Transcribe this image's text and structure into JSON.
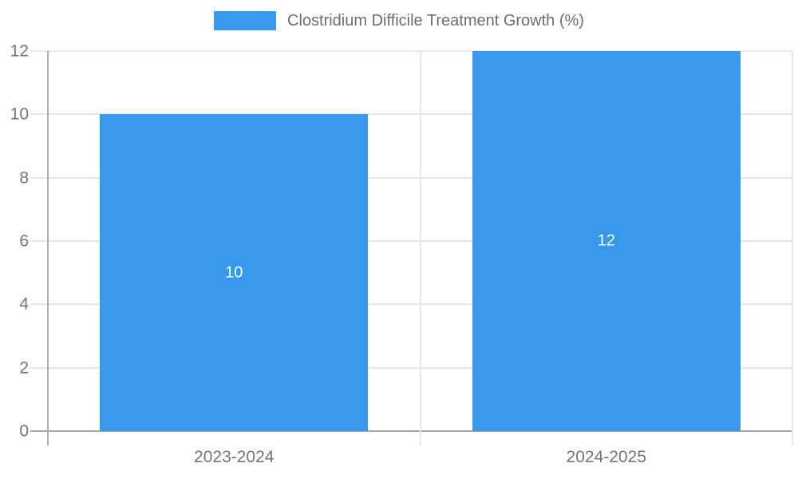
{
  "legend": {
    "label": "Clostridium Difficile Treatment Growth (%)"
  },
  "colors": {
    "bar": "#3899ec",
    "gridline": "#e6e6e6",
    "axis_line": "#b0b0b0",
    "baseline": "#a6a6a6",
    "axis_label_text": "#757575",
    "legend_text": "#6e6e6e",
    "data_label_text": "#ffffff"
  },
  "chart_data": {
    "type": "bar",
    "title": "Clostridium Difficile Treatment Growth (%)",
    "categories": [
      "2023-2024",
      "2024-2025"
    ],
    "values": [
      10,
      12
    ],
    "data_labels": [
      "10",
      "12"
    ],
    "xlabel": "",
    "ylabel": "",
    "ylim": [
      0,
      12
    ],
    "yticks": [
      0,
      2,
      4,
      6,
      8,
      10,
      12
    ],
    "grid": "horizontal",
    "legend_position": "top",
    "bar_color": "#3899ec"
  }
}
